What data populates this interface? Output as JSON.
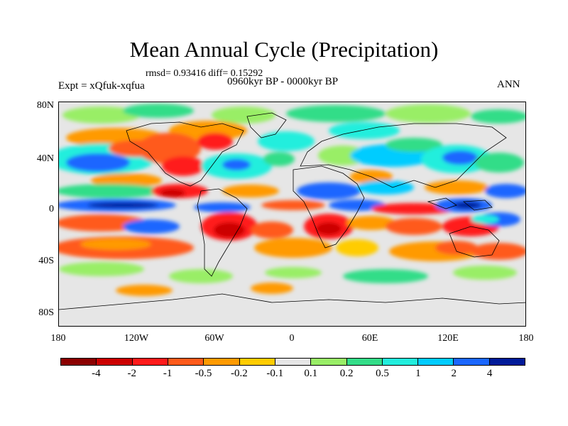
{
  "title": "Mean Annual Cycle (Precipitation)",
  "stats": "rmsd= 0.93416  diff= 0.15292",
  "period": "0960kyr BP - 0000kyr BP",
  "experiment": "Expt = xQfuk-xqfua",
  "season": "ANN",
  "lat_labels": [
    "80N",
    "40N",
    "0",
    "40S",
    "80S"
  ],
  "lon_labels": [
    "180",
    "120W",
    "60W",
    "0",
    "60E",
    "120E",
    "180"
  ],
  "colorbar": {
    "colors": [
      "#8b0000",
      "#cc0000",
      "#ff1a1a",
      "#ff5a1a",
      "#ff9a00",
      "#ffcc00",
      "#e6e6e6",
      "#99ee66",
      "#33dd88",
      "#22eedd",
      "#00ccff",
      "#1a66ff",
      "#001a99"
    ],
    "labels": [
      "-4",
      "-2",
      "-1",
      "-0.5",
      "-0.2",
      "-0.1",
      "0.1",
      "0.2",
      "0.5",
      "1",
      "2",
      "4"
    ]
  }
}
